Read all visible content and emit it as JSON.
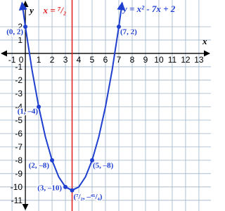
{
  "chart_data": {
    "type": "line",
    "xlim": [
      -1.9,
      13.9
    ],
    "ylim": [
      -11.8,
      4
    ],
    "xticks": [
      -1,
      0,
      1,
      2,
      3,
      4,
      5,
      6,
      7,
      8,
      9,
      10,
      11,
      12,
      13
    ],
    "yticks": [
      -11,
      -10,
      -9,
      -8,
      -7,
      -6,
      -5,
      -4,
      -3,
      -2,
      -1,
      1,
      2
    ],
    "xlabel": "x",
    "ylabel": "y",
    "grid": true,
    "x": [
      -0.25,
      0,
      0.5,
      1,
      1.5,
      2,
      2.5,
      3,
      3.5,
      4,
      4.5,
      5,
      5.5,
      6,
      6.5,
      7,
      7.25
    ],
    "series": [
      {
        "name": "y = x² - 7x + 2",
        "color": "#1f3fcf",
        "values": [
          3.8125,
          2,
          -1.25,
          -4,
          -6.25,
          -8,
          -9.25,
          -10,
          -10.25,
          -10,
          -9.25,
          -8,
          -6.25,
          -4,
          -1.25,
          2,
          3.8125
        ]
      }
    ],
    "points": {
      "color": "#1f3fcf",
      "x": [
        0,
        1,
        2,
        3,
        3.5,
        5,
        7
      ],
      "values": [
        2,
        -4,
        -8,
        -10,
        -10.25,
        -8,
        2
      ],
      "labels": [
        "(0, 2)",
        "(1, –4)",
        "(2, –8)",
        "(3, –10)",
        "(⁷/₂, –⁴¹/₄)",
        "(5, –8)",
        "(7, 2)"
      ]
    },
    "vline": {
      "x": 3.5,
      "label": "x = ⁷/₂",
      "color": "#e01b1b"
    }
  }
}
